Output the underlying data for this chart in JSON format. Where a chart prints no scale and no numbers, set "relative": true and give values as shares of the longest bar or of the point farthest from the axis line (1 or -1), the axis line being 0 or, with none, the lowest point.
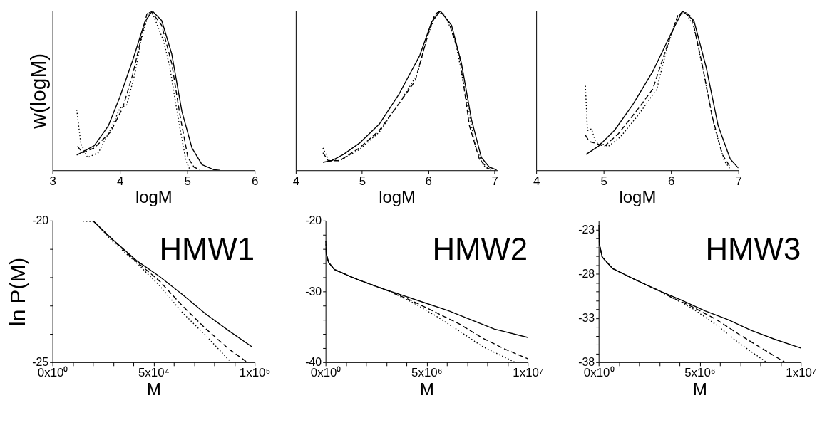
{
  "chart_data": [
    {
      "type": "line",
      "relative": true,
      "xlabel": "logM",
      "ylabel": "w(logM)",
      "xlim": [
        3,
        6
      ],
      "xticks": [
        3,
        4,
        5,
        6
      ],
      "tick_labels": "x",
      "series": [
        {
          "color": "#000000",
          "line_style": "solid",
          "x": [
            3.36,
            3.62,
            3.83,
            4.0,
            4.19,
            4.37,
            4.48,
            4.62,
            4.77,
            4.92,
            5.07,
            5.22,
            5.4,
            5.48
          ],
          "values": [
            0.095,
            0.155,
            0.28,
            0.46,
            0.69,
            0.93,
            1.0,
            0.94,
            0.73,
            0.37,
            0.14,
            0.035,
            0.003,
            0
          ]
        },
        {
          "color": "#000000",
          "line_style": "dashed",
          "x": [
            3.37,
            3.45,
            3.62,
            3.86,
            4.04,
            4.19,
            4.3,
            4.4,
            4.46,
            4.62,
            4.77,
            4.89,
            5.01,
            5.1,
            5.19
          ],
          "values": [
            0.15,
            0.11,
            0.14,
            0.24,
            0.39,
            0.6,
            0.8,
            0.98,
            1.0,
            0.91,
            0.67,
            0.35,
            0.08,
            0.02,
            0.003
          ]
        },
        {
          "color": "#000000",
          "line_style": "dotted",
          "x": [
            3.36,
            3.42,
            3.52,
            3.68,
            3.89,
            4.0,
            4.1,
            4.22,
            4.31,
            4.43,
            4.49,
            4.65,
            4.74,
            4.86,
            4.98,
            5.04
          ],
          "values": [
            0.38,
            0.17,
            0.08,
            0.11,
            0.28,
            0.39,
            0.41,
            0.6,
            0.81,
            0.99,
            0.98,
            0.81,
            0.65,
            0.34,
            0.06,
            0.003
          ]
        }
      ]
    },
    {
      "type": "line",
      "relative": true,
      "xlabel": "logM",
      "xlim": [
        4,
        7.05
      ],
      "xticks": [
        4,
        5,
        6,
        7
      ],
      "tick_labels": "x",
      "series": [
        {
          "color": "#000000",
          "line_style": "solid",
          "x": [
            4.41,
            4.54,
            4.72,
            4.96,
            5.26,
            5.56,
            5.87,
            6.05,
            6.18,
            6.35,
            6.5,
            6.65,
            6.8,
            6.92,
            7.03
          ],
          "values": [
            0.05,
            0.06,
            0.1,
            0.17,
            0.29,
            0.48,
            0.72,
            0.93,
            1.0,
            0.91,
            0.67,
            0.32,
            0.08,
            0.02,
            0.003
          ]
        },
        {
          "color": "#000000",
          "line_style": "dashed",
          "x": [
            4.41,
            4.49,
            4.66,
            4.96,
            5.26,
            5.56,
            5.8,
            5.98,
            6.1,
            6.18,
            6.31,
            6.47,
            6.62,
            6.77,
            6.89,
            6.98
          ],
          "values": [
            0.11,
            0.06,
            0.06,
            0.14,
            0.25,
            0.42,
            0.56,
            0.83,
            0.98,
            1.0,
            0.93,
            0.72,
            0.28,
            0.07,
            0.014,
            0
          ]
        },
        {
          "color": "#000000",
          "line_style": "dotted",
          "x": [
            4.41,
            4.49,
            4.66,
            4.96,
            5.26,
            5.62,
            5.83,
            6.0,
            6.13,
            6.25,
            6.41,
            6.56,
            6.71,
            6.83,
            6.92
          ],
          "values": [
            0.14,
            0.07,
            0.06,
            0.13,
            0.24,
            0.46,
            0.6,
            0.86,
            0.99,
            0.98,
            0.81,
            0.48,
            0.15,
            0.03,
            0.003
          ]
        }
      ]
    },
    {
      "type": "line",
      "relative": true,
      "xlabel": "logM",
      "xlim": [
        4,
        7
      ],
      "xticks": [
        4,
        5,
        6,
        7
      ],
      "tick_labels": "x",
      "series": [
        {
          "color": "#000000",
          "line_style": "solid",
          "x": [
            4.74,
            4.92,
            5.16,
            5.43,
            5.73,
            5.98,
            6.17,
            6.34,
            6.52,
            6.7,
            6.88,
            7.0
          ],
          "values": [
            0.1,
            0.15,
            0.25,
            0.41,
            0.62,
            0.84,
            1.0,
            0.94,
            0.65,
            0.28,
            0.07,
            0.014
          ]
        },
        {
          "color": "#000000",
          "line_style": "dashed",
          "x": [
            4.73,
            4.79,
            4.88,
            5.01,
            5.22,
            5.52,
            5.73,
            5.95,
            6.1,
            6.19,
            6.31,
            6.46,
            6.61,
            6.76,
            6.88
          ],
          "values": [
            0.22,
            0.18,
            0.17,
            0.15,
            0.23,
            0.39,
            0.51,
            0.79,
            0.97,
            1.0,
            0.96,
            0.67,
            0.34,
            0.1,
            0.02
          ]
        },
        {
          "color": "#000000",
          "line_style": "dotted",
          "x": [
            4.73,
            4.76,
            4.82,
            4.88,
            5.07,
            5.25,
            5.52,
            5.79,
            5.93,
            6.1,
            6.22,
            6.34,
            6.49,
            6.64,
            6.79,
            6.88
          ],
          "values": [
            0.53,
            0.25,
            0.26,
            0.18,
            0.15,
            0.21,
            0.35,
            0.51,
            0.75,
            0.97,
            0.99,
            0.9,
            0.6,
            0.28,
            0.06,
            0.007
          ]
        }
      ]
    },
    {
      "type": "line",
      "xlabel": "M",
      "ylabel": "ln P(M)",
      "annotations": [
        "HMW1"
      ],
      "xlim": [
        0,
        100000
      ],
      "ylim": [
        -25,
        -20
      ],
      "xticks": [
        {
          "value": 0,
          "label": "0x10⁰"
        },
        {
          "value": 10000,
          "label": null
        },
        {
          "value": 20000,
          "label": null
        },
        {
          "value": 30000,
          "label": null
        },
        {
          "value": 40000,
          "label": null
        },
        {
          "value": 50000,
          "label": "5x10⁴"
        },
        {
          "value": 60000,
          "label": null
        },
        {
          "value": 70000,
          "label": null
        },
        {
          "value": 80000,
          "label": null
        },
        {
          "value": 90000,
          "label": null
        },
        {
          "value": 100000,
          "label": "1x10⁵"
        }
      ],
      "yticks": [
        -25,
        {
          "value": -24,
          "label": null
        },
        {
          "value": -23,
          "label": null
        },
        {
          "value": -22,
          "label": null
        },
        {
          "value": -21,
          "label": null
        },
        -20
      ],
      "series": [
        {
          "color": "#000000",
          "line_style": "solid",
          "x": [
            20250,
            30000,
            41400,
            52900,
            64300,
            75700,
            87200,
            98600
          ],
          "values": [
            -20.02,
            -20.68,
            -21.4,
            -21.97,
            -22.61,
            -23.29,
            -23.89,
            -24.45
          ]
        },
        {
          "color": "#000000",
          "line_style": "dashed",
          "x": [
            20250,
            30000,
            41400,
            52900,
            64300,
            75700,
            87200,
            96300
          ],
          "values": [
            -20.02,
            -20.7,
            -21.44,
            -22.13,
            -23.01,
            -23.81,
            -24.53,
            -25.0
          ]
        },
        {
          "color": "#000000",
          "line_style": "dotted",
          "x": [
            15100,
            20800,
            30000,
            41400,
            52900,
            64300,
            75700,
            88300
          ],
          "values": [
            -20.02,
            -20.04,
            -20.76,
            -21.48,
            -22.29,
            -23.25,
            -24.05,
            -25.0
          ]
        }
      ]
    },
    {
      "type": "line",
      "xlabel": "M",
      "annotations": [
        "HMW2"
      ],
      "xlim": [
        0,
        10000000
      ],
      "ylim": [
        -40,
        -20
      ],
      "xticks": [
        {
          "value": 0,
          "label": "0x10⁰"
        },
        {
          "value": 1000000,
          "label": null
        },
        {
          "value": 2000000,
          "label": null
        },
        {
          "value": 3000000,
          "label": null
        },
        {
          "value": 4000000,
          "label": null
        },
        {
          "value": 5000000,
          "label": "5x10⁶"
        },
        {
          "value": 6000000,
          "label": null
        },
        {
          "value": 7000000,
          "label": null
        },
        {
          "value": 8000000,
          "label": null
        },
        {
          "value": 9000000,
          "label": null
        },
        {
          "value": 10000000,
          "label": "1x10⁷"
        }
      ],
      "yticks": [
        -40,
        {
          "value": -38,
          "label": null
        },
        {
          "value": -36,
          "label": null
        },
        {
          "value": -34,
          "label": null
        },
        {
          "value": -32,
          "label": null
        },
        -30,
        {
          "value": -28,
          "label": null
        },
        {
          "value": -26,
          "label": null
        },
        {
          "value": -24,
          "label": null
        },
        {
          "value": -22,
          "label": null
        },
        -20
      ],
      "series": [
        {
          "color": "#000000",
          "line_style": "solid",
          "x": [
            0,
            34000,
            149000,
            435000,
            1470000,
            2610000,
            3760000,
            4900000,
            6050000,
            7190000,
            8340000,
            10000000
          ],
          "values": [
            -22.9,
            -24.7,
            -25.9,
            -26.9,
            -28.2,
            -29.4,
            -30.5,
            -31.6,
            -32.7,
            -34.0,
            -35.3,
            -36.5
          ]
        },
        {
          "color": "#000000",
          "line_style": "dashed",
          "x": [
            0,
            34000,
            149000,
            435000,
            1470000,
            2610000,
            3180000,
            4330000,
            5480000,
            6620000,
            7770000,
            8910000,
            10000000
          ],
          "values": [
            -22.9,
            -24.7,
            -25.9,
            -26.9,
            -28.2,
            -29.4,
            -30.0,
            -31.4,
            -33.0,
            -34.6,
            -36.6,
            -38.2,
            -39.5
          ]
        },
        {
          "color": "#000000",
          "line_style": "dotted",
          "x": [
            0,
            34000,
            149000,
            435000,
            1470000,
            2610000,
            3180000,
            4330000,
            5480000,
            6620000,
            7770000,
            9370000
          ],
          "values": [
            -22.9,
            -24.7,
            -25.9,
            -26.9,
            -28.2,
            -29.4,
            -30.0,
            -31.6,
            -33.5,
            -35.6,
            -37.8,
            -40.0
          ]
        }
      ]
    },
    {
      "type": "line",
      "xlabel": "M",
      "annotations": [
        "HMW3"
      ],
      "xlim": [
        0,
        10000000
      ],
      "ylim": [
        -38,
        -22
      ],
      "xticks": [
        {
          "value": 0,
          "label": "0x10⁰"
        },
        {
          "value": 1000000,
          "label": null
        },
        {
          "value": 2000000,
          "label": null
        },
        {
          "value": 3000000,
          "label": null
        },
        {
          "value": 4000000,
          "label": null
        },
        {
          "value": 5000000,
          "label": "5x10⁶"
        },
        {
          "value": 6000000,
          "label": null
        },
        {
          "value": 7000000,
          "label": null
        },
        {
          "value": 8000000,
          "label": null
        },
        {
          "value": 9000000,
          "label": null
        },
        {
          "value": 10000000,
          "label": "1x10⁷"
        }
      ],
      "yticks": [
        -38,
        {
          "value": -37,
          "label": null
        },
        {
          "value": -36,
          "label": null
        },
        {
          "value": -35,
          "label": null
        },
        {
          "value": -34,
          "label": null
        },
        -33,
        {
          "value": -32,
          "label": null
        },
        {
          "value": -31,
          "label": null
        },
        {
          "value": -30,
          "label": null
        },
        {
          "value": -29,
          "label": null
        },
        -28,
        {
          "value": -27,
          "label": null
        },
        {
          "value": -26,
          "label": null
        },
        {
          "value": -25,
          "label": null
        },
        {
          "value": -24,
          "label": null
        },
        -23
      ],
      "series": [
        {
          "color": "#000000",
          "line_style": "solid",
          "x": [
            0,
            34000,
            172000,
            686000,
            1830000,
            2970000,
            4120000,
            5260000,
            6410000,
            7550000,
            8700000,
            10000000
          ],
          "values": [
            -22.5,
            -24.6,
            -26.1,
            -27.4,
            -28.7,
            -29.9,
            -31.0,
            -32.2,
            -33.2,
            -34.4,
            -35.4,
            -36.4
          ]
        },
        {
          "color": "#000000",
          "line_style": "dashed",
          "x": [
            0,
            34000,
            172000,
            686000,
            1830000,
            2970000,
            3550000,
            4690000,
            5840000,
            6980000,
            8120000,
            9210000
          ],
          "values": [
            -22.5,
            -24.6,
            -26.1,
            -27.4,
            -28.7,
            -29.9,
            -30.6,
            -31.8,
            -33.2,
            -34.9,
            -36.5,
            -38.0
          ]
        },
        {
          "color": "#000000",
          "line_style": "dotted",
          "x": [
            0,
            34000,
            172000,
            686000,
            1830000,
            2970000,
            3550000,
            4690000,
            5840000,
            6980000,
            8300000
          ],
          "values": [
            -22.5,
            -24.6,
            -26.1,
            -27.4,
            -28.7,
            -29.9,
            -30.6,
            -32.0,
            -33.8,
            -35.9,
            -38.0
          ]
        }
      ]
    }
  ]
}
